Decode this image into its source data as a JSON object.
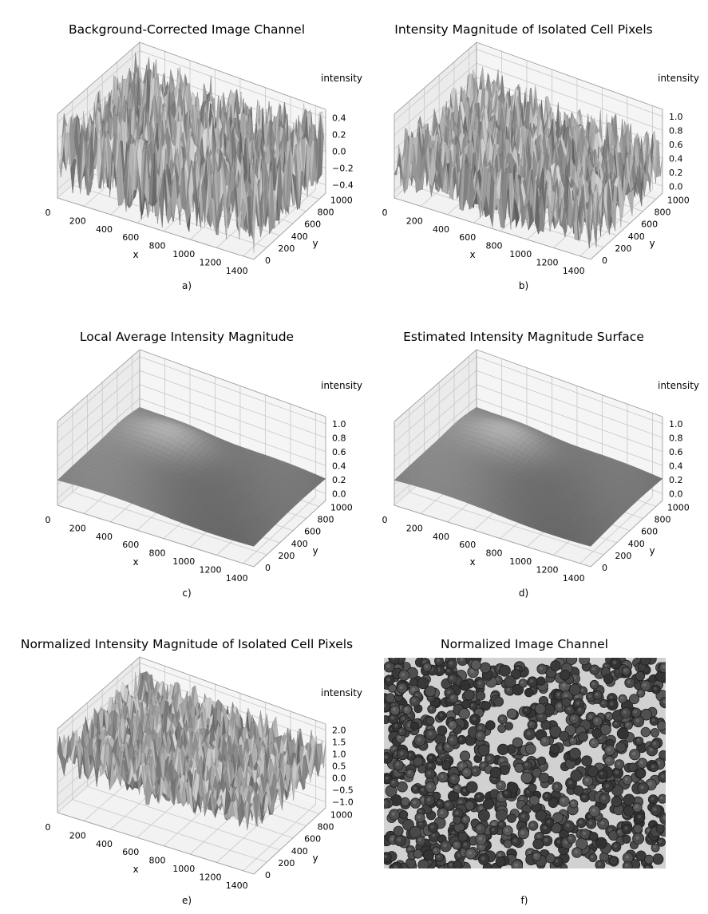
{
  "chart_data": [
    {
      "type": "surface3d",
      "panel_label": "a)",
      "title": "Background-Corrected Image Channel",
      "xlabel": "x",
      "ylabel": "y",
      "zlabel": "intensity",
      "x_ticks": [
        "0",
        "200",
        "400",
        "600",
        "800",
        "1000",
        "1200",
        "1400"
      ],
      "y_ticks": [
        "0",
        "200",
        "400",
        "600",
        "800",
        "1000"
      ],
      "z_ticks": [
        "−0.4",
        "−0.2",
        "0.0",
        "0.2",
        "0.4"
      ],
      "xlim": [
        0,
        1550
      ],
      "ylim": [
        0,
        1100
      ],
      "zlim": [
        -0.5,
        0.5
      ],
      "surface": "noisy",
      "description_values": {
        "amplitude": 0.45,
        "mean": 0.0
      }
    },
    {
      "type": "surface3d",
      "panel_label": "b)",
      "title": "Intensity Magnitude of Isolated Cell Pixels",
      "xlabel": "x",
      "ylabel": "y",
      "zlabel": "intensity",
      "x_ticks": [
        "0",
        "200",
        "400",
        "600",
        "800",
        "1000",
        "1200",
        "1400"
      ],
      "y_ticks": [
        "0",
        "200",
        "400",
        "600",
        "800",
        "1000"
      ],
      "z_ticks": [
        "0.0",
        "0.2",
        "0.4",
        "0.6",
        "0.8",
        "1.0"
      ],
      "xlim": [
        0,
        1550
      ],
      "ylim": [
        0,
        1100
      ],
      "zlim": [
        0,
        1
      ],
      "surface": "noisy",
      "description_values": {
        "amplitude": 0.35,
        "mean": 0.4
      }
    },
    {
      "type": "surface3d",
      "panel_label": "c)",
      "title": "Local Average Intensity Magnitude",
      "xlabel": "x",
      "ylabel": "y",
      "zlabel": "intensity",
      "x_ticks": [
        "0",
        "200",
        "400",
        "600",
        "800",
        "1000",
        "1200",
        "1400"
      ],
      "y_ticks": [
        "0",
        "200",
        "400",
        "600",
        "800",
        "1000"
      ],
      "z_ticks": [
        "0.0",
        "0.2",
        "0.4",
        "0.6",
        "0.8",
        "1.0"
      ],
      "xlim": [
        0,
        1550
      ],
      "ylim": [
        0,
        1100
      ],
      "zlim": [
        0,
        1
      ],
      "surface": "smooth",
      "description_values": {
        "amplitude": 0.12,
        "mean": 0.3
      }
    },
    {
      "type": "surface3d",
      "panel_label": "d)",
      "title": "Estimated Intensity Magnitude Surface",
      "xlabel": "x",
      "ylabel": "y",
      "zlabel": "intensity",
      "x_ticks": [
        "0",
        "200",
        "400",
        "600",
        "800",
        "1000",
        "1200",
        "1400"
      ],
      "y_ticks": [
        "0",
        "200",
        "400",
        "600",
        "800",
        "1000"
      ],
      "z_ticks": [
        "0.0",
        "0.2",
        "0.4",
        "0.6",
        "0.8",
        "1.0"
      ],
      "xlim": [
        0,
        1550
      ],
      "ylim": [
        0,
        1100
      ],
      "zlim": [
        0,
        1
      ],
      "surface": "smooth",
      "description_values": {
        "amplitude": 0.12,
        "mean": 0.3
      }
    },
    {
      "type": "surface3d",
      "panel_label": "e)",
      "title": "Normalized Intensity Magnitude of Isolated Cell Pixels",
      "xlabel": "x",
      "ylabel": "y",
      "zlabel": "intensity",
      "x_ticks": [
        "0",
        "200",
        "400",
        "600",
        "800",
        "1000",
        "1200",
        "1400"
      ],
      "y_ticks": [
        "0",
        "200",
        "400",
        "600",
        "800",
        "1000"
      ],
      "z_ticks": [
        "−1.0",
        "−0.5",
        "0.0",
        "0.5",
        "1.0",
        "1.5",
        "2.0"
      ],
      "xlim": [
        0,
        1550
      ],
      "ylim": [
        0,
        1100
      ],
      "zlim": [
        -1,
        2
      ],
      "surface": "noisy",
      "description_values": {
        "amplitude": 0.7,
        "mean": 1.0
      }
    },
    {
      "type": "image",
      "panel_label": "f)",
      "title": "Normalized Image Channel",
      "description_values": {
        "background_gray": 0.82,
        "cell_gray": 0.25
      }
    }
  ]
}
